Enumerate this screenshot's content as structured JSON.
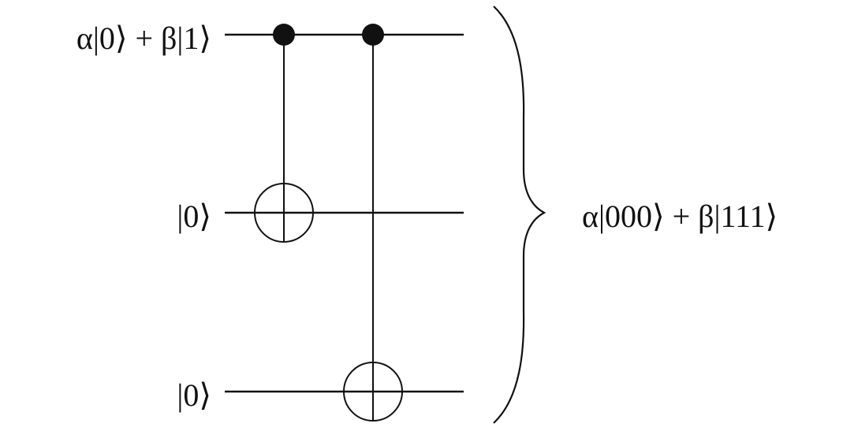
{
  "circuit": {
    "qubits": [
      {
        "state_label": "α|0⟩ + β|1⟩"
      },
      {
        "state_label": "|0⟩"
      },
      {
        "state_label": "|0⟩"
      }
    ],
    "gates": [
      {
        "type": "CNOT",
        "control": 0,
        "target": 1
      },
      {
        "type": "CNOT",
        "control": 0,
        "target": 2
      }
    ],
    "output_label": "α|000⟩ + β|111⟩",
    "colors": {
      "ink": "#111111",
      "background": "#ffffff"
    }
  }
}
